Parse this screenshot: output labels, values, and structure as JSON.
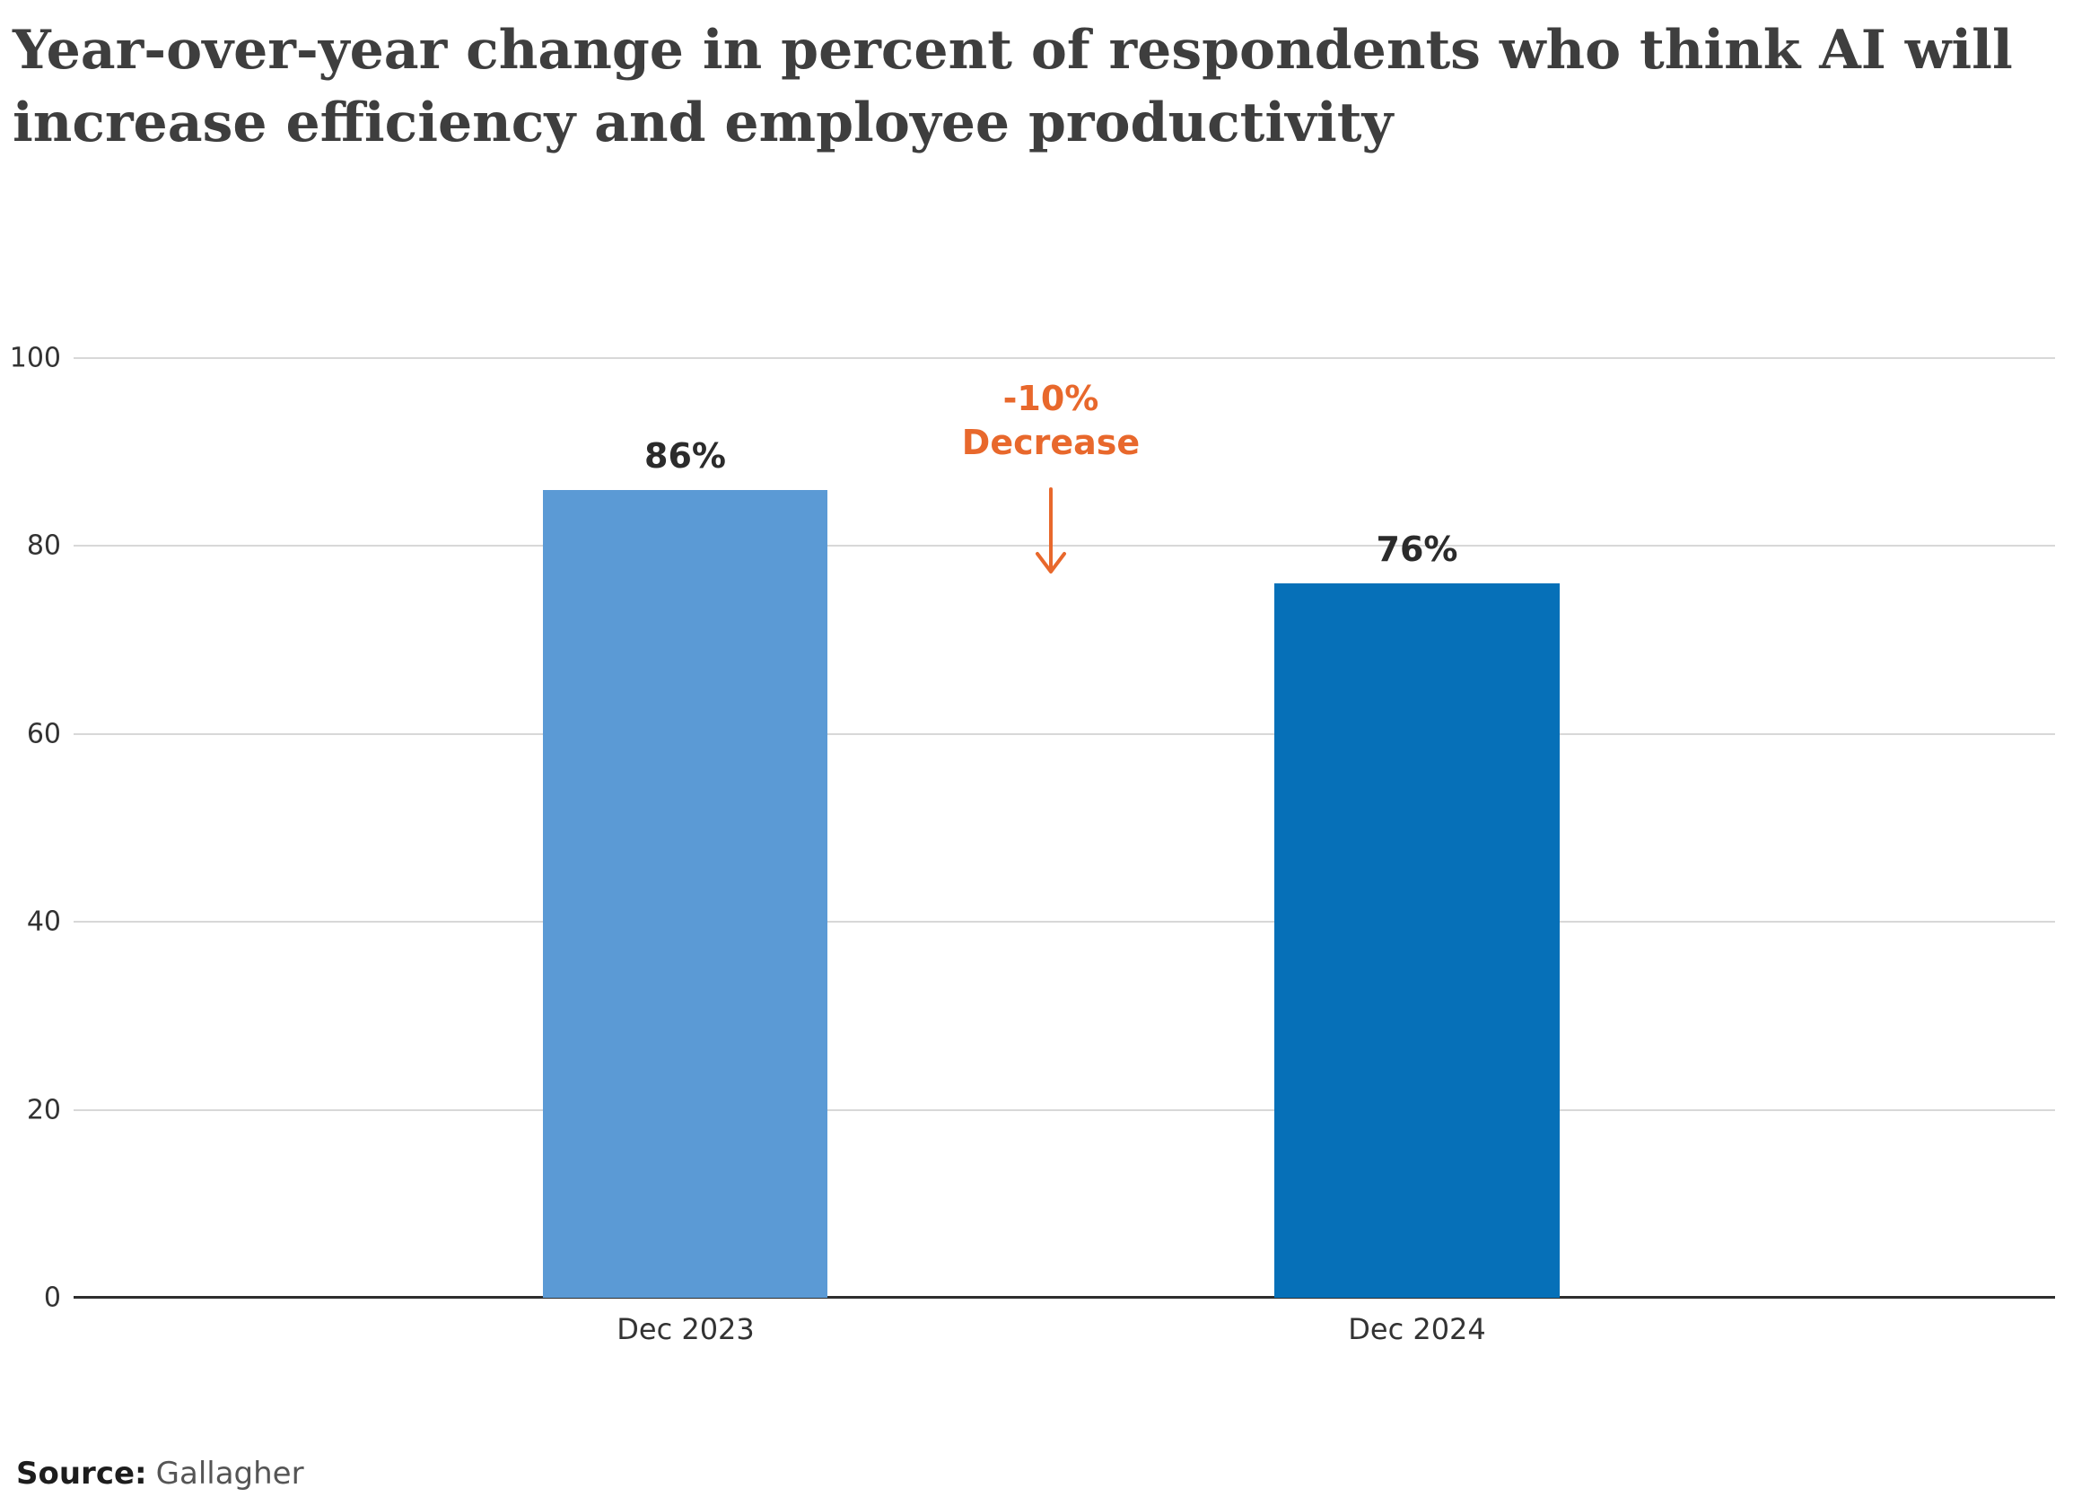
{
  "chart_data": {
    "type": "bar",
    "title": "Year-over-year change in percent of respondents who think AI will increase efficiency and employee productivity",
    "categories": [
      "Dec 2023",
      "Dec 2024"
    ],
    "values": [
      86,
      76
    ],
    "value_labels": [
      "86%",
      "76%"
    ],
    "bar_colors": [
      "#5B9AD5",
      "#0670B8"
    ],
    "ylim": [
      0,
      100
    ],
    "yticks": [
      0,
      20,
      40,
      60,
      80,
      100
    ],
    "grid": true,
    "legend": false,
    "annotation": {
      "text": "-10% Decrease",
      "lines": [
        "-10%",
        "Decrease"
      ],
      "color": "#E8682C"
    }
  },
  "source": {
    "label": "Source:",
    "name": "Gallagher"
  }
}
